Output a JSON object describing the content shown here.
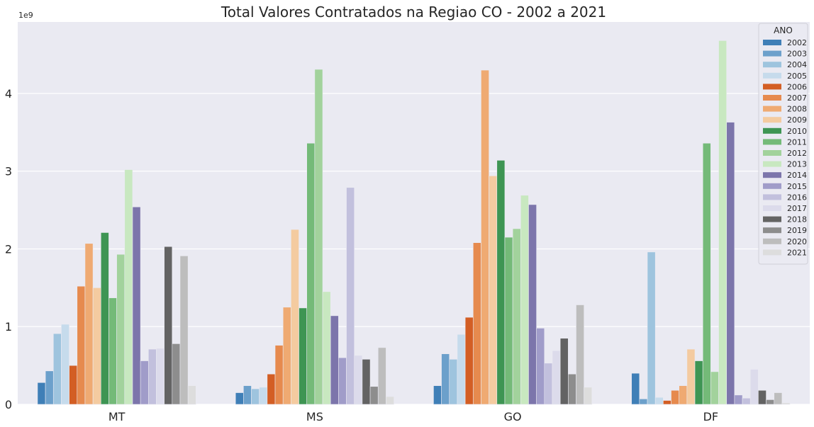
{
  "chart_data": {
    "type": "bar",
    "title": "Total Valores Contratados na Regiao CO - 2002 a 2021",
    "xlabel": "",
    "ylabel": "",
    "y_exponent_label": "1e9",
    "ylim": [
      0,
      4.92
    ],
    "yticks": [
      0,
      1,
      2,
      3,
      4
    ],
    "ytick_labels": [
      "0",
      "1",
      "2",
      "3",
      "4"
    ],
    "grid": true,
    "legend": {
      "title": "ANO",
      "placement": "top-right"
    },
    "categories": [
      "MT",
      "MS",
      "GO",
      "DF"
    ],
    "series": [
      {
        "name": "2002",
        "color": "#3f7fb7",
        "values": [
          0.28,
          0.15,
          0.24,
          0.4
        ]
      },
      {
        "name": "2003",
        "color": "#6ca0cb",
        "values": [
          0.43,
          0.24,
          0.65,
          0.07
        ]
      },
      {
        "name": "2004",
        "color": "#9ec4de",
        "values": [
          0.91,
          0.2,
          0.58,
          1.96
        ]
      },
      {
        "name": "2005",
        "color": "#c6dbec",
        "values": [
          1.03,
          0.22,
          0.9,
          0.09
        ]
      },
      {
        "name": "2006",
        "color": "#d35e24",
        "values": [
          0.5,
          0.39,
          1.12,
          0.05
        ]
      },
      {
        "name": "2007",
        "color": "#e68a4e",
        "values": [
          1.52,
          0.76,
          2.08,
          0.18
        ]
      },
      {
        "name": "2008",
        "color": "#efaa72",
        "values": [
          2.07,
          1.25,
          4.3,
          0.24
        ]
      },
      {
        "name": "2009",
        "color": "#f4cba0",
        "values": [
          1.5,
          2.25,
          2.94,
          0.71
        ]
      },
      {
        "name": "2010",
        "color": "#3e9553",
        "values": [
          2.21,
          1.24,
          3.14,
          0.56
        ]
      },
      {
        "name": "2011",
        "color": "#74ba78",
        "values": [
          1.37,
          3.36,
          2.15,
          3.36
        ]
      },
      {
        "name": "2012",
        "color": "#a2d29c",
        "values": [
          1.93,
          4.31,
          2.26,
          0.42
        ]
      },
      {
        "name": "2013",
        "color": "#c8e8c0",
        "values": [
          3.02,
          1.45,
          2.69,
          4.68
        ]
      },
      {
        "name": "2014",
        "color": "#7c75ab",
        "values": [
          2.54,
          1.14,
          2.57,
          3.63
        ]
      },
      {
        "name": "2015",
        "color": "#a09cc9",
        "values": [
          0.56,
          0.6,
          0.98,
          0.12
        ]
      },
      {
        "name": "2016",
        "color": "#c2c0dd",
        "values": [
          0.71,
          2.79,
          0.53,
          0.08
        ]
      },
      {
        "name": "2017",
        "color": "#dcdbeb",
        "values": [
          0.72,
          0.63,
          0.69,
          0.45
        ]
      },
      {
        "name": "2018",
        "color": "#636363",
        "values": [
          2.03,
          0.58,
          0.85,
          0.18
        ]
      },
      {
        "name": "2019",
        "color": "#8d8d8d",
        "values": [
          0.78,
          0.23,
          0.39,
          0.06
        ]
      },
      {
        "name": "2020",
        "color": "#bdbdbd",
        "values": [
          1.91,
          0.73,
          1.28,
          0.15
        ]
      },
      {
        "name": "2021",
        "color": "#dddddd",
        "values": [
          0.24,
          0.1,
          0.22,
          0.02
        ]
      }
    ],
    "colors": {
      "plot_background": "#eaeaf2",
      "grid": "#ffffff",
      "text": "#262626"
    }
  }
}
